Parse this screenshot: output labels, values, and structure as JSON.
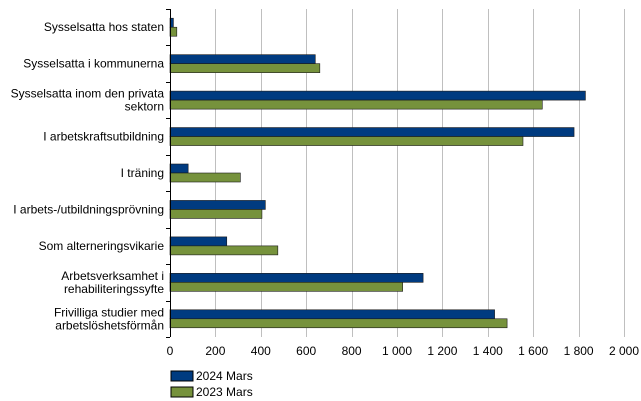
{
  "chart_data": {
    "type": "bar",
    "orientation": "horizontal",
    "categories": [
      [
        "Sysselsatta hos staten"
      ],
      [
        "Sysselsatta i kommunerna"
      ],
      [
        "Sysselsatta inom den privata",
        "sektorn"
      ],
      [
        "I arbetskraftsutbildning"
      ],
      [
        "I träning"
      ],
      [
        "I arbets-/utbildningsprövning"
      ],
      [
        "Som alterneringsvikarie"
      ],
      [
        "Arbetsverksamhet i",
        "rehabiliteringssyfte"
      ],
      [
        "Frivilliga studier med",
        "arbetslöshetsförmån"
      ]
    ],
    "series": [
      {
        "name": "2024 Mars",
        "color": "#003B80",
        "values": [
          15,
          640,
          1830,
          1780,
          80,
          420,
          250,
          1115,
          1430
        ]
      },
      {
        "name": "2023 Mars",
        "color": "#76923C",
        "values": [
          30,
          660,
          1640,
          1555,
          310,
          405,
          475,
          1025,
          1485
        ]
      }
    ],
    "xlim": [
      0,
      2000
    ],
    "xticks": [
      0,
      200,
      400,
      600,
      800,
      1000,
      1200,
      1400,
      1600,
      1800,
      2000
    ],
    "xtick_labels": [
      "0",
      "200",
      "400",
      "600",
      "800",
      "1 000",
      "1 200",
      "1 400",
      "1 600",
      "1 800",
      "2 000"
    ],
    "grid": true,
    "legend_position": "bottom-left",
    "title": "",
    "xlabel": "",
    "ylabel": ""
  }
}
